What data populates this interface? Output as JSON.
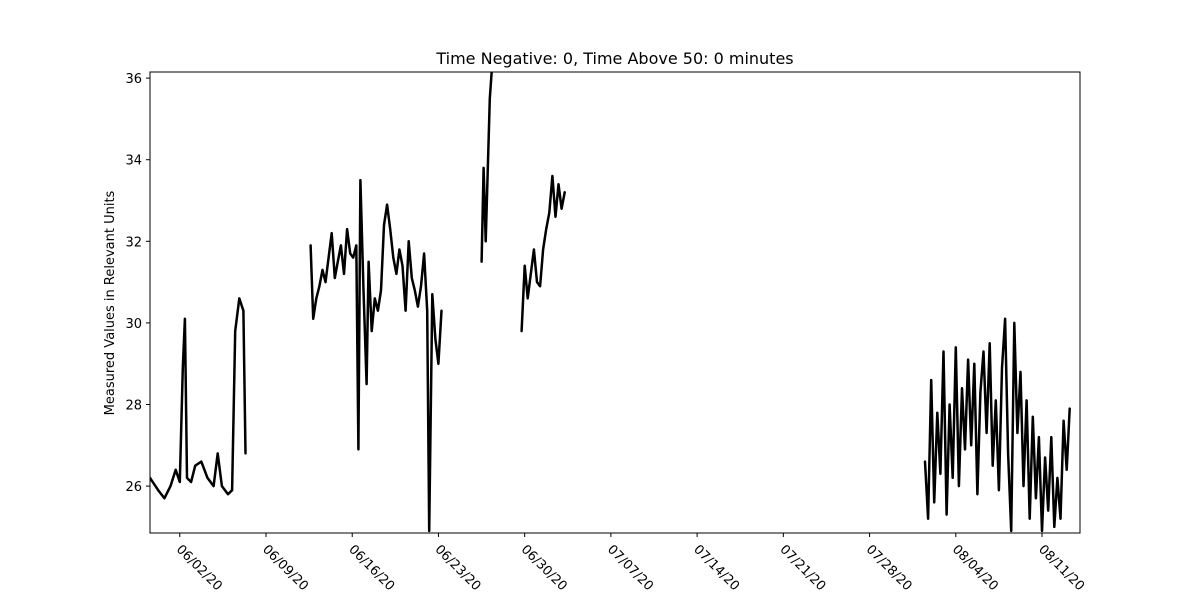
{
  "chart_data": {
    "type": "line",
    "title": "Time Negative: 0, Time Above 50: 0 minutes",
    "xlabel": "",
    "ylabel": "Measured Values in Relevant Units",
    "x_axis": {
      "type": "date",
      "range": [
        "2020-05-30T14:00",
        "2020-08-14T02:00"
      ],
      "ticks": [
        "06/02/20",
        "06/09/20",
        "06/16/20",
        "06/23/20",
        "06/30/20",
        "07/07/20",
        "07/14/20",
        "07/21/20",
        "07/28/20",
        "08/04/20",
        "08/11/20"
      ],
      "tick_dates": [
        "2020-06-02",
        "2020-06-09",
        "2020-06-16",
        "2020-06-23",
        "2020-06-30",
        "2020-07-07",
        "2020-07-14",
        "2020-07-21",
        "2020-07-28",
        "2020-08-04",
        "2020-08-11"
      ],
      "tick_rotation_deg": -45
    },
    "y_axis": {
      "range": [
        24.85,
        36.15
      ],
      "ticks": [
        26,
        28,
        30,
        32,
        34,
        36
      ]
    },
    "grid": false,
    "legend": "none",
    "series": [
      {
        "color": "#000000",
        "segments": [
          [
            [
              "2020-05-30T14:00",
              26.2
            ],
            [
              "2020-05-31T06:00",
              25.9
            ],
            [
              "2020-05-31T18:00",
              25.7
            ],
            [
              "2020-06-01T06:00",
              26.0
            ],
            [
              "2020-06-01T16:00",
              26.4
            ],
            [
              "2020-06-02T00:00",
              26.1
            ],
            [
              "2020-06-02T06:00",
              28.9
            ],
            [
              "2020-06-02T10:00",
              30.1
            ],
            [
              "2020-06-02T14:00",
              26.2
            ],
            [
              "2020-06-02T22:00",
              26.1
            ],
            [
              "2020-06-03T06:00",
              26.5
            ],
            [
              "2020-06-03T18:00",
              26.6
            ],
            [
              "2020-06-04T06:00",
              26.2
            ],
            [
              "2020-06-04T18:00",
              26.0
            ],
            [
              "2020-06-05T02:00",
              26.8
            ],
            [
              "2020-06-05T10:00",
              26.0
            ],
            [
              "2020-06-05T22:00",
              25.8
            ],
            [
              "2020-06-06T06:00",
              25.9
            ],
            [
              "2020-06-06T12:00",
              29.8
            ],
            [
              "2020-06-06T20:00",
              30.6
            ],
            [
              "2020-06-07T04:00",
              30.3
            ],
            [
              "2020-06-07T08:00",
              26.8
            ]
          ],
          [
            [
              "2020-06-12T15:00",
              31.9
            ],
            [
              "2020-06-12T20:00",
              30.1
            ],
            [
              "2020-06-13T02:00",
              30.6
            ],
            [
              "2020-06-13T08:00",
              30.9
            ],
            [
              "2020-06-13T14:00",
              31.3
            ],
            [
              "2020-06-13T20:00",
              31.0
            ],
            [
              "2020-06-14T02:00",
              31.6
            ],
            [
              "2020-06-14T08:00",
              32.2
            ],
            [
              "2020-06-14T14:00",
              31.1
            ],
            [
              "2020-06-14T20:00",
              31.5
            ],
            [
              "2020-06-15T02:00",
              31.9
            ],
            [
              "2020-06-15T08:00",
              31.2
            ],
            [
              "2020-06-15T14:00",
              32.3
            ],
            [
              "2020-06-15T20:00",
              31.7
            ],
            [
              "2020-06-16T02:00",
              31.6
            ],
            [
              "2020-06-16T08:00",
              31.9
            ],
            [
              "2020-06-16T12:00",
              26.9
            ],
            [
              "2020-06-16T16:00",
              33.5
            ],
            [
              "2020-06-16T22:00",
              30.8
            ],
            [
              "2020-06-17T04:00",
              28.5
            ],
            [
              "2020-06-17T08:00",
              31.5
            ],
            [
              "2020-06-17T14:00",
              29.8
            ],
            [
              "2020-06-17T20:00",
              30.6
            ],
            [
              "2020-06-18T02:00",
              30.3
            ],
            [
              "2020-06-18T08:00",
              30.8
            ],
            [
              "2020-06-18T14:00",
              32.4
            ],
            [
              "2020-06-18T20:00",
              32.9
            ],
            [
              "2020-06-19T02:00",
              32.3
            ],
            [
              "2020-06-19T08:00",
              31.6
            ],
            [
              "2020-06-19T14:00",
              31.2
            ],
            [
              "2020-06-19T20:00",
              31.8
            ],
            [
              "2020-06-20T02:00",
              31.4
            ],
            [
              "2020-06-20T08:00",
              30.3
            ],
            [
              "2020-06-20T14:00",
              32.0
            ],
            [
              "2020-06-20T20:00",
              31.1
            ],
            [
              "2020-06-21T02:00",
              30.8
            ],
            [
              "2020-06-21T08:00",
              30.4
            ],
            [
              "2020-06-21T14:00",
              30.9
            ],
            [
              "2020-06-21T20:00",
              31.7
            ],
            [
              "2020-06-22T02:00",
              30.3
            ],
            [
              "2020-06-22T06:00",
              24.9
            ],
            [
              "2020-06-22T12:00",
              30.7
            ],
            [
              "2020-06-22T18:00",
              29.6
            ],
            [
              "2020-06-23T00:00",
              29.0
            ],
            [
              "2020-06-23T06:00",
              30.3
            ]
          ],
          [
            [
              "2020-06-26T12:00",
              31.5
            ],
            [
              "2020-06-26T16:00",
              33.8
            ],
            [
              "2020-06-26T20:00",
              32.0
            ],
            [
              "2020-06-27T00:00",
              33.7
            ],
            [
              "2020-06-27T04:00",
              35.5
            ],
            [
              "2020-06-27T08:00",
              36.2
            ]
          ],
          [
            [
              "2020-06-29T18:00",
              29.8
            ],
            [
              "2020-06-30T00:00",
              31.4
            ],
            [
              "2020-06-30T06:00",
              30.6
            ],
            [
              "2020-06-30T12:00",
              31.2
            ],
            [
              "2020-06-30T18:00",
              31.8
            ],
            [
              "2020-07-01T00:00",
              31.0
            ],
            [
              "2020-07-01T06:00",
              30.9
            ],
            [
              "2020-07-01T12:00",
              31.8
            ],
            [
              "2020-07-01T18:00",
              32.3
            ],
            [
              "2020-07-02T00:00",
              32.7
            ],
            [
              "2020-07-02T06:00",
              33.6
            ],
            [
              "2020-07-02T12:00",
              32.6
            ],
            [
              "2020-07-02T18:00",
              33.4
            ],
            [
              "2020-07-03T00:00",
              32.8
            ],
            [
              "2020-07-03T06:00",
              33.2
            ]
          ],
          [
            [
              "2020-08-01T12:00",
              26.6
            ],
            [
              "2020-08-01T18:00",
              25.2
            ],
            [
              "2020-08-02T00:00",
              28.6
            ],
            [
              "2020-08-02T06:00",
              25.6
            ],
            [
              "2020-08-02T12:00",
              27.8
            ],
            [
              "2020-08-02T18:00",
              26.3
            ],
            [
              "2020-08-03T00:00",
              29.3
            ],
            [
              "2020-08-03T06:00",
              25.3
            ],
            [
              "2020-08-03T12:00",
              28.0
            ],
            [
              "2020-08-03T18:00",
              26.2
            ],
            [
              "2020-08-04T00:00",
              29.4
            ],
            [
              "2020-08-04T06:00",
              26.0
            ],
            [
              "2020-08-04T12:00",
              28.4
            ],
            [
              "2020-08-04T18:00",
              26.9
            ],
            [
              "2020-08-05T00:00",
              29.1
            ],
            [
              "2020-08-05T06:00",
              27.0
            ],
            [
              "2020-08-05T12:00",
              29.0
            ],
            [
              "2020-08-05T18:00",
              25.8
            ],
            [
              "2020-08-06T00:00",
              28.3
            ],
            [
              "2020-08-06T06:00",
              29.3
            ],
            [
              "2020-08-06T12:00",
              27.3
            ],
            [
              "2020-08-06T18:00",
              29.5
            ],
            [
              "2020-08-07T00:00",
              26.5
            ],
            [
              "2020-08-07T06:00",
              28.1
            ],
            [
              "2020-08-07T12:00",
              25.9
            ],
            [
              "2020-08-07T18:00",
              28.9
            ],
            [
              "2020-08-08T00:00",
              30.1
            ],
            [
              "2020-08-08T06:00",
              26.8
            ],
            [
              "2020-08-08T12:00",
              24.9
            ],
            [
              "2020-08-08T18:00",
              30.0
            ],
            [
              "2020-08-09T00:00",
              27.3
            ],
            [
              "2020-08-09T06:00",
              28.8
            ],
            [
              "2020-08-09T12:00",
              26.0
            ],
            [
              "2020-08-09T18:00",
              28.1
            ],
            [
              "2020-08-10T00:00",
              25.2
            ],
            [
              "2020-08-10T06:00",
              27.7
            ],
            [
              "2020-08-10T12:00",
              25.7
            ],
            [
              "2020-08-10T18:00",
              27.2
            ],
            [
              "2020-08-11T00:00",
              24.9
            ],
            [
              "2020-08-11T06:00",
              26.7
            ],
            [
              "2020-08-11T12:00",
              25.4
            ],
            [
              "2020-08-11T18:00",
              27.2
            ],
            [
              "2020-08-12T00:00",
              25.0
            ],
            [
              "2020-08-12T06:00",
              26.2
            ],
            [
              "2020-08-12T12:00",
              25.2
            ],
            [
              "2020-08-12T18:00",
              27.6
            ],
            [
              "2020-08-13T00:00",
              26.4
            ],
            [
              "2020-08-13T06:00",
              27.9
            ]
          ]
        ]
      }
    ]
  }
}
